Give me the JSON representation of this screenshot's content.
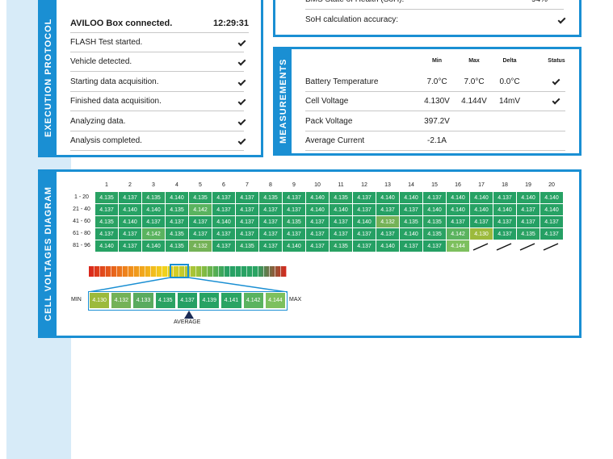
{
  "execution_protocol": {
    "title": "EXECUTION PROTOCOL",
    "header": {
      "label": "AVILOO Box connected.",
      "time": "12:29:31"
    },
    "steps": [
      "FLASH Test started.",
      "Vehicle detected.",
      "Starting data acquisition.",
      "Finished data acquisition.",
      "Analyzing data.",
      "Analysis completed."
    ]
  },
  "soh": {
    "rows": [
      {
        "label": "BMS State of Health (SoH):",
        "value": "94%"
      },
      {
        "label": "SoH calculation accuracy:",
        "status": true
      }
    ]
  },
  "measurements": {
    "title": "MEASUREMENTS",
    "columns": [
      "Min",
      "Max",
      "Delta",
      "Status"
    ],
    "rows": [
      {
        "label": "Battery Temperature",
        "min": "7.0°C",
        "max": "7.0°C",
        "delta": "0.0°C",
        "status": true
      },
      {
        "label": "Cell Voltage",
        "min": "4.130V",
        "max": "4.144V",
        "delta": "14mV",
        "status": true
      },
      {
        "label": "Pack Voltage",
        "min": "397.2V",
        "status": false
      },
      {
        "label": "Average Current",
        "min": "-2.1A",
        "status": false
      }
    ]
  },
  "cell_voltages": {
    "title": "CELL VOLTAGES DIAGRAM",
    "columns": [
      "1",
      "2",
      "3",
      "4",
      "5",
      "6",
      "7",
      "8",
      "9",
      "10",
      "11",
      "12",
      "13",
      "14",
      "15",
      "16",
      "17",
      "18",
      "19",
      "20"
    ],
    "rows": [
      {
        "label": "1 - 20",
        "cells": [
          "4.135",
          "4.137",
          "4.135",
          "4.140",
          "4.135",
          "4.137",
          "4.137",
          "4.135",
          "4.137",
          "4.140",
          "4.135",
          "4.137",
          "4.140",
          "4.140",
          "4.137",
          "4.140",
          "4.140",
          "4.137",
          "4.140",
          "4.140"
        ]
      },
      {
        "label": "21 - 40",
        "cells": [
          "4.137",
          "4.140",
          "4.140",
          "4.135",
          "4.142",
          "4.137",
          "4.137",
          "4.137",
          "4.137",
          "4.140",
          "4.140",
          "4.137",
          "4.137",
          "4.137",
          "4.140",
          "4.140",
          "4.140",
          "4.140",
          "4.137",
          "4.140"
        ]
      },
      {
        "label": "41 - 60",
        "cells": [
          "4.135",
          "4.140",
          "4.137",
          "4.137",
          "4.137",
          "4.140",
          "4.137",
          "4.137",
          "4.135",
          "4.137",
          "4.137",
          "4.140",
          "4.132",
          "4.135",
          "4.135",
          "4.137",
          "4.137",
          "4.137",
          "4.137",
          "4.137"
        ]
      },
      {
        "label": "61 - 80",
        "cells": [
          "4.137",
          "4.137",
          "4.142",
          "4.135",
          "4.137",
          "4.137",
          "4.137",
          "4.137",
          "4.137",
          "4.137",
          "4.137",
          "4.137",
          "4.137",
          "4.140",
          "4.135",
          "4.142",
          "4.130",
          "4.137",
          "4.135",
          "4.137"
        ]
      },
      {
        "label": "81 - 96",
        "cells": [
          "4.140",
          "4.137",
          "4.140",
          "4.135",
          "4.132",
          "4.137",
          "4.135",
          "4.137",
          "4.140",
          "4.137",
          "4.135",
          "4.137",
          "4.140",
          "4.137",
          "4.137",
          "4.144"
        ]
      }
    ],
    "legend": {
      "min_label": "MIN",
      "max_label": "MAX",
      "average_label": "AVERAGE",
      "entries": [
        {
          "value": "4.130",
          "color": "#9cba3c"
        },
        {
          "value": "4.132",
          "color": "#74b257"
        },
        {
          "value": "4.133",
          "color": "#5aab5f"
        },
        {
          "value": "4.135",
          "color": "#2aa263"
        },
        {
          "value": "4.137",
          "color": "#25a064"
        },
        {
          "value": "4.139",
          "color": "#27a264"
        },
        {
          "value": "4.141",
          "color": "#2aa463"
        },
        {
          "value": "4.142",
          "color": "#5ab35f"
        },
        {
          "value": "4.144",
          "color": "#7dc05e"
        }
      ]
    }
  }
}
